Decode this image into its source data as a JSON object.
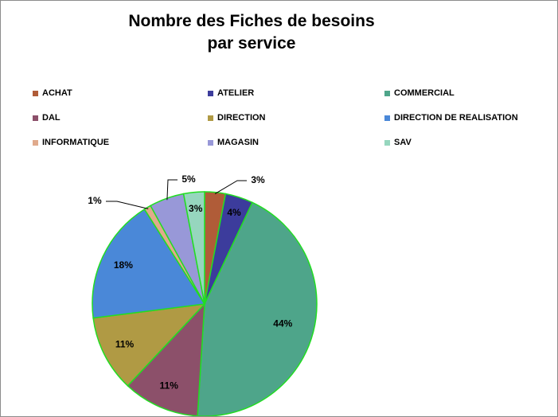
{
  "chart_data": {
    "type": "pie",
    "title_lines": [
      "Nombre des Fiches de besoins",
      "par service"
    ],
    "categories": [
      "ACHAT",
      "ATELIER",
      "COMMERCIAL",
      "DAL",
      "DIRECTION",
      "DIRECTION DE REALISATION",
      "INFORMATIQUE",
      "MAGASIN",
      "SAV"
    ],
    "values": [
      3,
      4,
      44,
      11,
      11,
      18,
      1,
      5,
      3
    ],
    "labels": [
      "3%",
      "4%",
      "44%",
      "11%",
      "11%",
      "18%",
      "1%",
      "5%",
      "3%"
    ],
    "colors": [
      "#b05c38",
      "#3c3c9c",
      "#4ea58a",
      "#8c506a",
      "#b09a44",
      "#4a88d8",
      "#e0aa8c",
      "#9898d8",
      "#96d6be"
    ],
    "slice_border_color": "#22dd22",
    "legend_position": "top"
  }
}
